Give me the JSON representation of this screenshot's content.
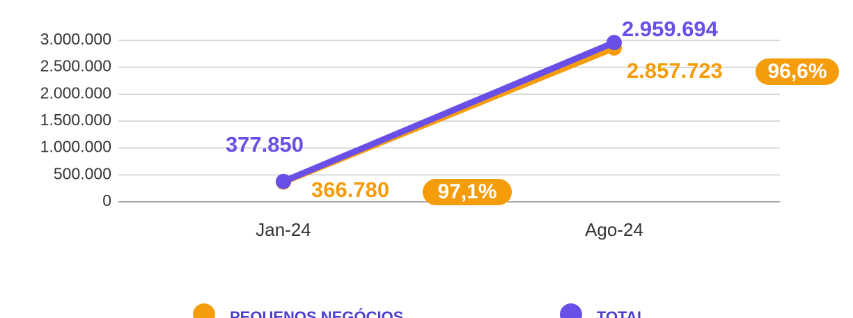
{
  "chart_data": {
    "type": "line",
    "categories": [
      "Jan-24",
      "Ago-24"
    ],
    "series": [
      {
        "name": "PEQUENOS NEGÓCIOS",
        "color": "#f59c0b",
        "values": [
          366780,
          2857723
        ],
        "value_labels": [
          "366.780",
          "2.857.723"
        ],
        "annotations": [
          "97,1%",
          "96,6%"
        ]
      },
      {
        "name": "TOTAL",
        "color": "#6a4ee8",
        "values": [
          377850,
          2959694
        ],
        "value_labels": [
          "377.850",
          "2.959.694"
        ]
      }
    ],
    "ylim": [
      0,
      3000000
    ],
    "yticks": [
      0,
      {
        "value": 500000,
        "label": "500.000"
      },
      {
        "value": 1000000,
        "label": "1.000.000"
      },
      {
        "value": 1500000,
        "label": "1.500.000"
      },
      {
        "value": 2000000,
        "label": "2.000.000"
      },
      {
        "value": 2500000,
        "label": "2.500.000"
      },
      {
        "value": 3000000,
        "label": "3.000.000"
      }
    ],
    "grid": true,
    "legend": "bottom"
  }
}
